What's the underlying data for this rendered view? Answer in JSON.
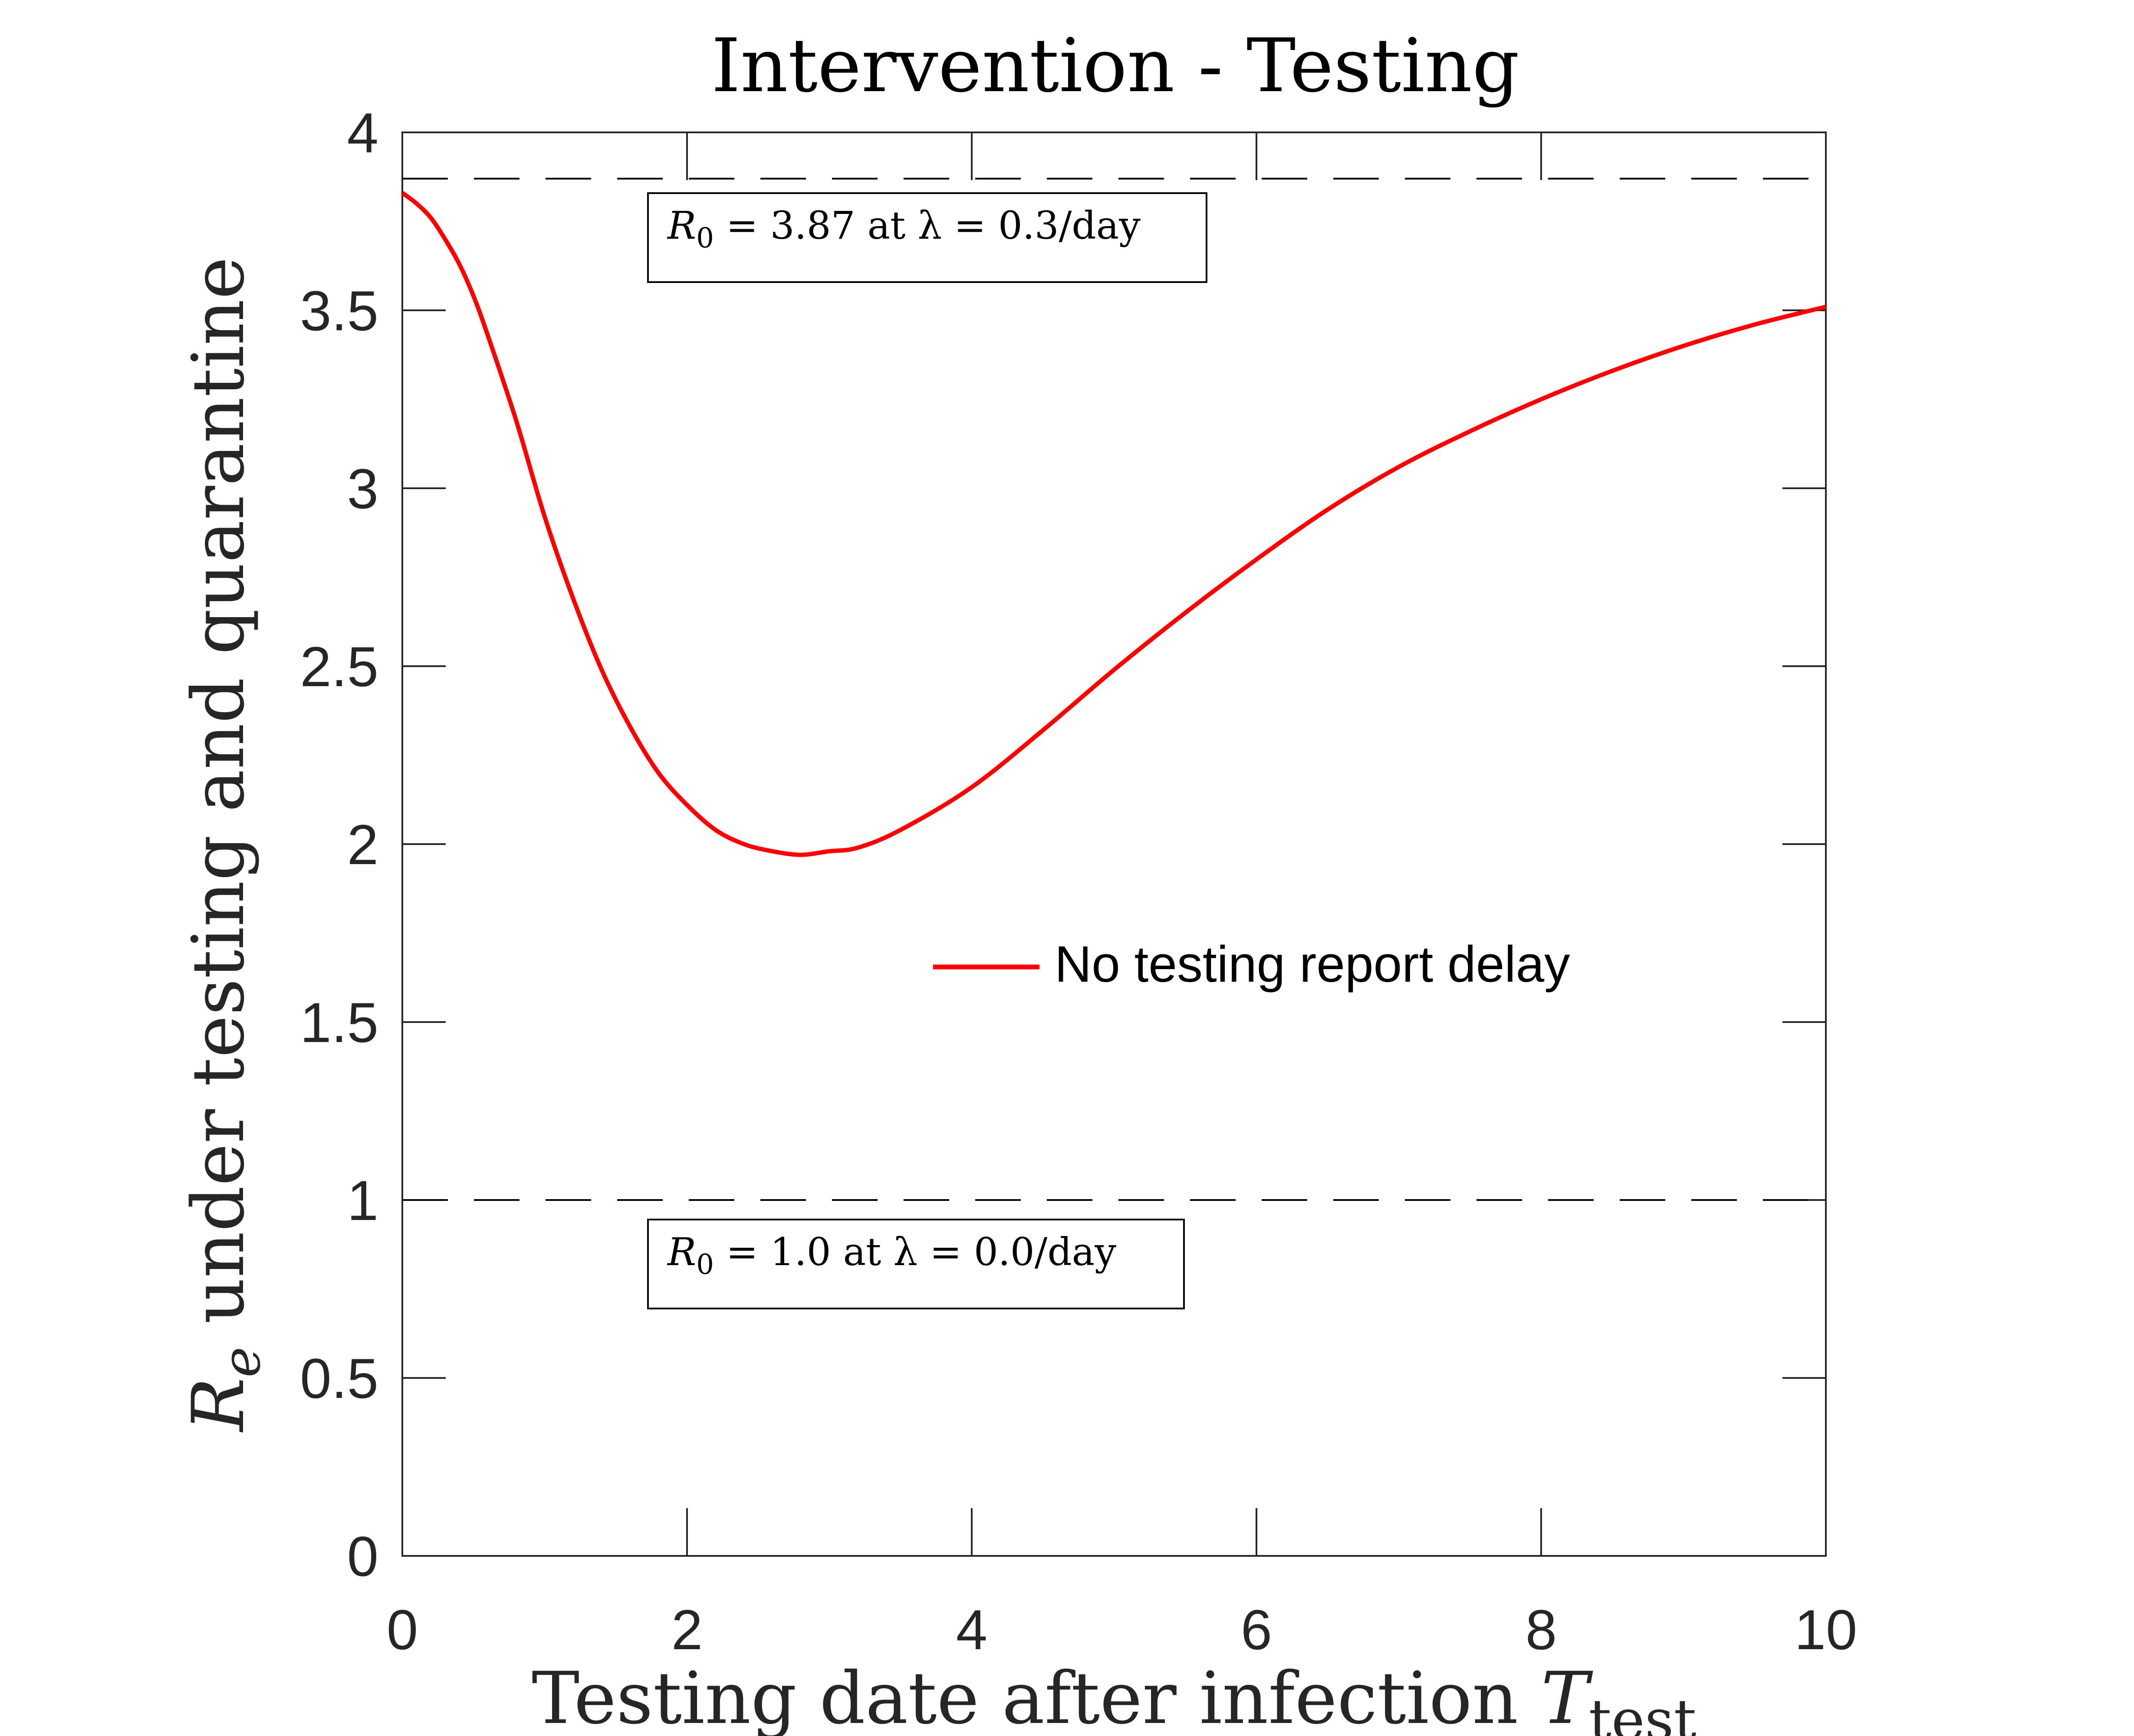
{
  "chart_data": {
    "type": "line",
    "title": "Intervention - Testing",
    "xlabel": "Testing date after infection",
    "xlabel_symbol": "T",
    "xlabel_subscript": "test",
    "ylabel_symbol": "R",
    "ylabel_subscript": "e",
    "ylabel": "under testing and quarantine",
    "xlim": [
      0,
      10
    ],
    "ylim": [
      0,
      4
    ],
    "xticks": [
      "0",
      "2",
      "4",
      "6",
      "8",
      "10"
    ],
    "yticks": [
      "0",
      "0.5",
      "1",
      "1.5",
      "2",
      "2.5",
      "3",
      "3.5",
      "4"
    ],
    "series": [
      {
        "name": "No testing report delay",
        "color": "#ff0000",
        "x": [
          0,
          0.1,
          0.2,
          0.3,
          0.4,
          0.5,
          0.6,
          0.8,
          1.0,
          1.2,
          1.4,
          1.6,
          1.8,
          2.0,
          2.2,
          2.4,
          2.6,
          2.8,
          3.0,
          3.2,
          3.5,
          4.0,
          4.5,
          5.0,
          5.5,
          6.0,
          6.5,
          7.0,
          7.5,
          8.0,
          8.5,
          9.0,
          9.5,
          10.0
        ],
        "y": [
          3.83,
          3.8,
          3.76,
          3.7,
          3.63,
          3.54,
          3.43,
          3.19,
          2.92,
          2.69,
          2.49,
          2.33,
          2.2,
          2.11,
          2.04,
          2.0,
          1.98,
          1.97,
          1.98,
          1.99,
          2.04,
          2.16,
          2.32,
          2.49,
          2.65,
          2.8,
          2.94,
          3.06,
          3.16,
          3.25,
          3.33,
          3.4,
          3.46,
          3.51
        ]
      }
    ],
    "reference_lines": [
      {
        "y": 3.87,
        "style": "dashed",
        "color": "#000000"
      },
      {
        "y": 1.0,
        "style": "dashed",
        "color": "#000000"
      }
    ],
    "annotations": [
      {
        "text_sym": "R",
        "text_sub": "0",
        "text_rest": " = 3.87 at λ = 0.3/day"
      },
      {
        "text_sym": "R",
        "text_sub": "0",
        "text_rest": " = 1.0 at λ = 0.0/day"
      }
    ],
    "legend": {
      "position": "center-right",
      "box": false
    },
    "grid": false
  }
}
